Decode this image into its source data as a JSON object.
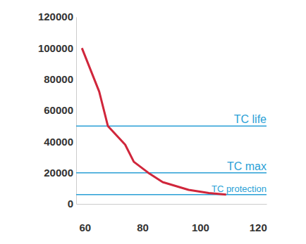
{
  "chart_data": {
    "type": "line",
    "x": [
      59,
      65,
      68,
      74,
      77,
      82,
      87,
      96,
      103,
      109
    ],
    "series": [
      {
        "color": "#d0263b",
        "values": [
          100000,
          72000,
          50000,
          38000,
          27000,
          20000,
          14000,
          9000,
          7000,
          6000
        ]
      }
    ],
    "xlim": [
      57,
      123
    ],
    "xticks": [
      60,
      80,
      100,
      120
    ],
    "ylim": [
      0,
      120000
    ],
    "yticks": [
      0,
      20000,
      40000,
      60000,
      80000,
      100000,
      120000
    ],
    "hlines": [
      {
        "value": 50000,
        "label": "TC life",
        "color": "#2a9fd6"
      },
      {
        "value": 20000,
        "label": "TC max",
        "color": "#2a9fd6"
      },
      {
        "value": 6000,
        "label": "TC protection",
        "color": "#2a9fd6"
      }
    ]
  }
}
